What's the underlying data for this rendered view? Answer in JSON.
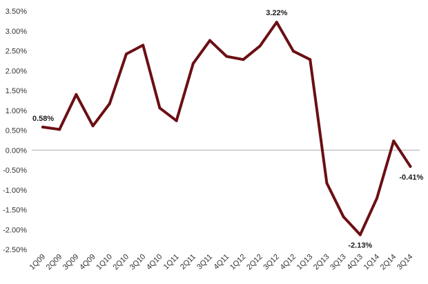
{
  "chart_data": {
    "type": "line",
    "title": "",
    "xlabel": "",
    "ylabel": "",
    "ylim": [
      -2.5,
      3.5
    ],
    "y_tick_step": 0.5,
    "y_tick_format": "percent_2dp",
    "grid": false,
    "zero_line": true,
    "legend": "none",
    "line_color": "#6b0f14",
    "zero_line_color": "#aaaaaa",
    "categories": [
      "1Q09",
      "2Q09",
      "3Q09",
      "4Q09",
      "1Q10",
      "2Q10",
      "3Q10",
      "4Q10",
      "1Q11",
      "2Q11",
      "3Q11",
      "4Q11",
      "1Q12",
      "2Q12",
      "3Q12",
      "4Q12",
      "1Q13",
      "2Q13",
      "3Q13",
      "4Q13",
      "1Q14",
      "2Q14",
      "3Q14"
    ],
    "series": [
      {
        "values": [
          0.58,
          0.52,
          1.4,
          0.61,
          1.17,
          2.42,
          2.64,
          1.06,
          0.74,
          2.18,
          2.76,
          2.36,
          2.28,
          2.62,
          3.22,
          2.49,
          2.28,
          -0.83,
          -1.68,
          -2.13,
          -1.21,
          0.23,
          -0.41
        ]
      }
    ],
    "annotations": [
      {
        "index": 0,
        "text": "0.58%"
      },
      {
        "index": 14,
        "text": "3.22%"
      },
      {
        "index": 19,
        "text": "-2.13%"
      },
      {
        "index": 22,
        "text": "-0.41%"
      }
    ]
  }
}
